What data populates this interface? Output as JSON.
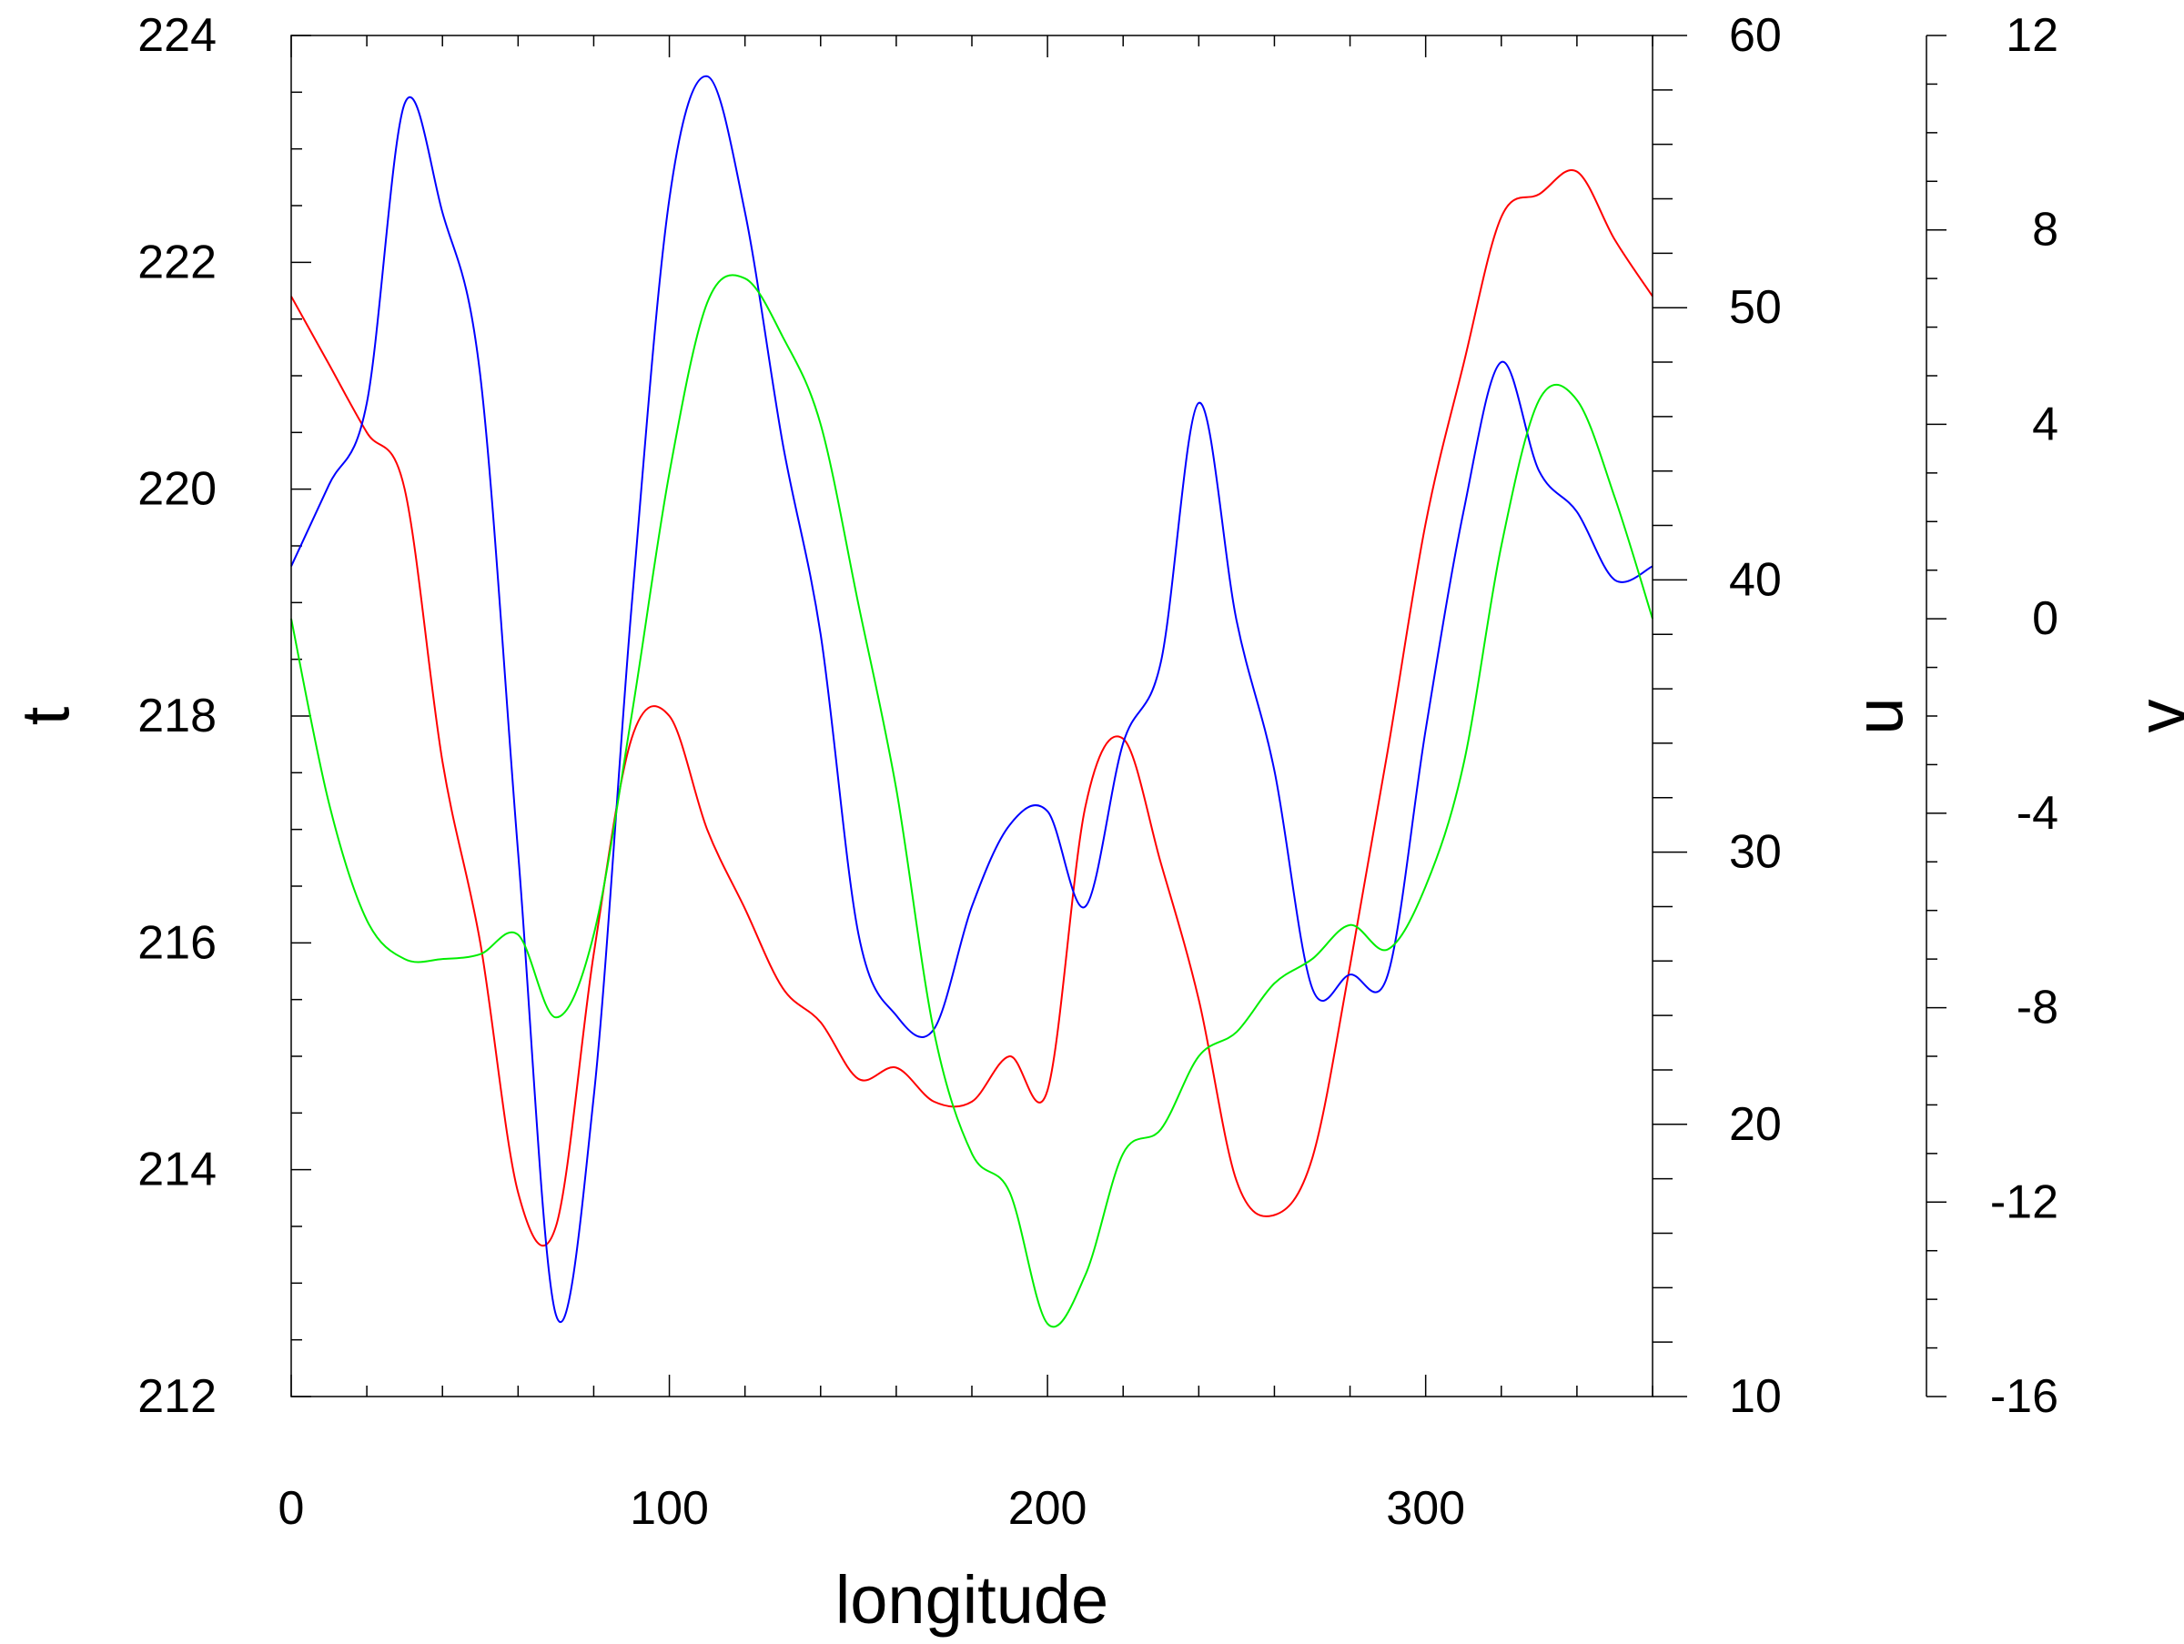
{
  "chart_data": {
    "type": "line",
    "title": "",
    "xlabel": "longitude",
    "x": [
      0,
      10,
      20,
      30,
      40,
      50,
      60,
      70,
      80,
      90,
      100,
      110,
      120,
      130,
      140,
      150,
      160,
      170,
      180,
      190,
      200,
      210,
      220,
      230,
      240,
      250,
      260,
      270,
      280,
      290,
      300,
      310,
      320,
      330,
      340,
      350,
      360
    ],
    "xlim": [
      0,
      360
    ],
    "xticks": [
      0,
      100,
      200,
      300
    ],
    "grid": false,
    "axes": [
      {
        "id": "t",
        "label": "t",
        "side": "left",
        "lim": [
          212,
          224
        ],
        "ticks": [
          212,
          214,
          216,
          218,
          220,
          222,
          224
        ]
      },
      {
        "id": "u",
        "label": "u",
        "side": "right",
        "lim": [
          10,
          60
        ],
        "ticks": [
          10,
          20,
          30,
          40,
          50,
          60
        ]
      },
      {
        "id": "v",
        "label": "v",
        "side": "right-outer",
        "lim": [
          -16,
          12
        ],
        "ticks": [
          -16,
          -12,
          -8,
          -4,
          0,
          4,
          8,
          12
        ]
      }
    ],
    "series": [
      {
        "axis": "t",
        "color": "#ff0000",
        "values": [
          221.7,
          221.1,
          220.5,
          220.0,
          217.6,
          216.0,
          213.8,
          213.5,
          215.9,
          217.8,
          218.0,
          217.0,
          216.3,
          215.6,
          215.3,
          214.8,
          214.9,
          214.6,
          214.6,
          215.0,
          214.7,
          217.2,
          217.8,
          216.7,
          215.5,
          213.9,
          213.6,
          214.1,
          215.8,
          217.7,
          219.7,
          221.1,
          222.4,
          222.6,
          222.8,
          222.2,
          221.7
        ]
      },
      {
        "axis": "u",
        "color": "#0000ff",
        "values": [
          40.5,
          43.5,
          46.5,
          57.5,
          53.5,
          47.5,
          30.0,
          13.0,
          21.0,
          39.0,
          54.0,
          58.5,
          53.5,
          45.0,
          38.0,
          27.0,
          24.0,
          23.5,
          28.0,
          31.0,
          31.5,
          28.0,
          34.0,
          37.0,
          46.5,
          38.5,
          33.0,
          25.0,
          25.5,
          25.5,
          34.5,
          42.5,
          48.0,
          44.0,
          42.5,
          40.0,
          40.5
        ]
      },
      {
        "axis": "v",
        "color": "#00ee00",
        "values": [
          0,
          -3.8,
          -6.2,
          -7.0,
          -7.0,
          -6.9,
          -6.5,
          -8.2,
          -6.5,
          -2.0,
          3.0,
          6.5,
          7.0,
          5.8,
          4.0,
          0.3,
          -3.5,
          -8.5,
          -11.0,
          -11.8,
          -14.5,
          -13.5,
          -11.0,
          -10.5,
          -9.0,
          -8.5,
          -7.5,
          -7.0,
          -6.3,
          -6.8,
          -5.5,
          -3.0,
          1.5,
          4.5,
          4.5,
          2.5,
          0
        ]
      }
    ]
  }
}
